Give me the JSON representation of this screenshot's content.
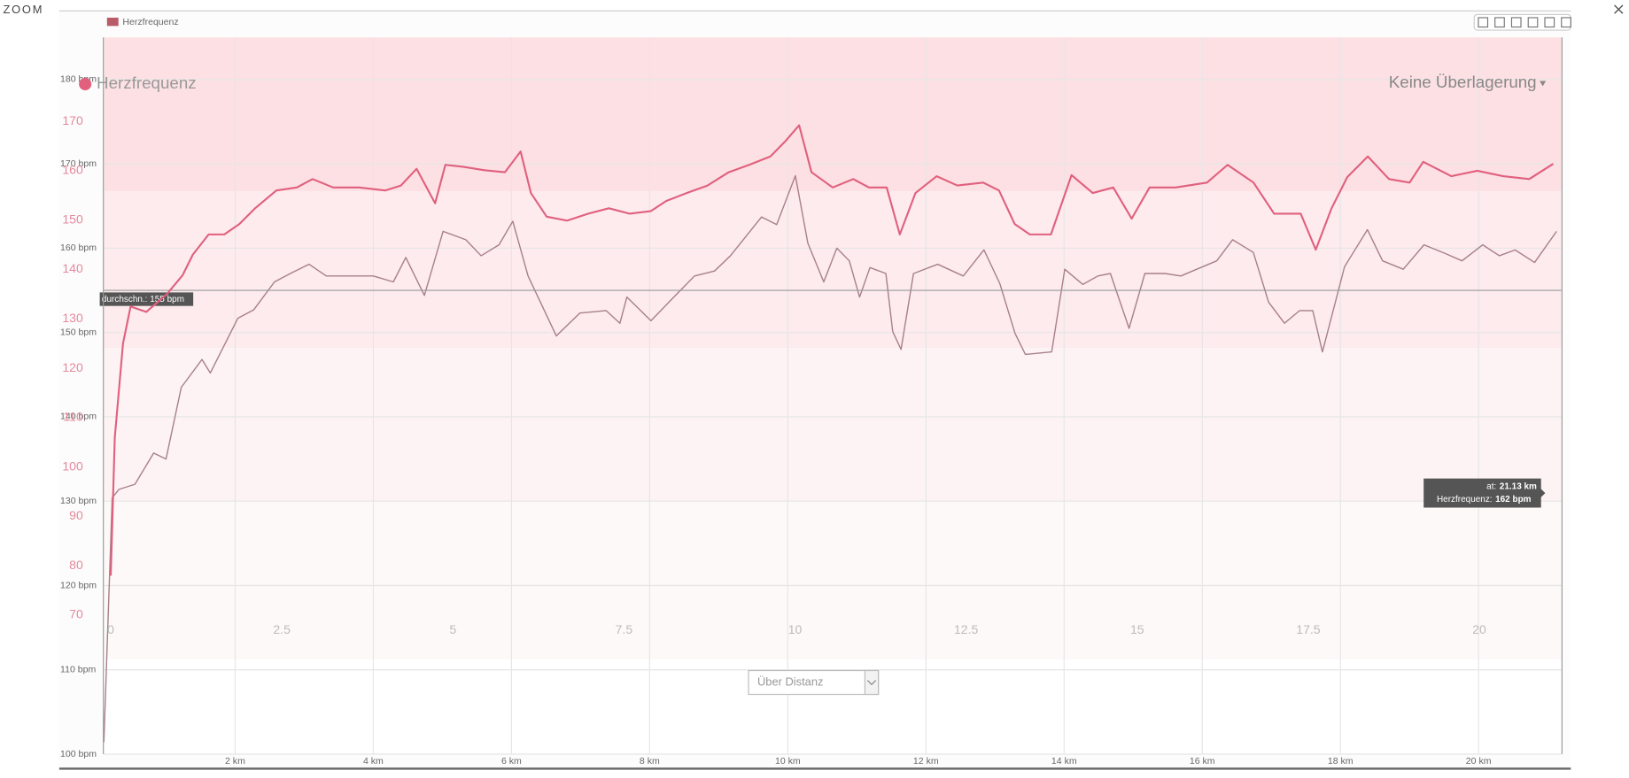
{
  "window_title": "ZOOM",
  "chart_data": [
    {
      "type": "line",
      "legend": "top-left",
      "xlim": [
        0.1,
        21.2
      ],
      "ylim": [
        100,
        185
      ],
      "xticks": [
        {
          "value": 2,
          "label": "2 km"
        },
        {
          "value": 4,
          "label": "4 km"
        },
        {
          "value": 6,
          "label": "6 km"
        },
        {
          "value": 8,
          "label": "8 km"
        },
        {
          "value": 10,
          "label": "10 km"
        },
        {
          "value": 12,
          "label": "12 km"
        },
        {
          "value": 14,
          "label": "14 km"
        },
        {
          "value": 16,
          "label": "16 km"
        },
        {
          "value": 18,
          "label": "18 km"
        },
        {
          "value": 20,
          "label": "20 km"
        }
      ],
      "yticks": [
        {
          "value": 100,
          "label": "100 bpm"
        },
        {
          "value": 110,
          "label": "110 bpm"
        },
        {
          "value": 120,
          "label": "120 bpm"
        },
        {
          "value": 130,
          "label": "130 bpm"
        },
        {
          "value": 140,
          "label": "140 bpm"
        },
        {
          "value": 150,
          "label": "150 bpm"
        },
        {
          "value": 160,
          "label": "160 bpm"
        },
        {
          "value": 170,
          "label": "170 bpm"
        },
        {
          "value": 180,
          "label": "180 bpm"
        }
      ],
      "grid": true,
      "average": {
        "value": 155,
        "label": "durchschn.: 155 bpm"
      },
      "tooltip": {
        "x": 21.13,
        "y": 162,
        "x_name": "at:",
        "x_label": "21.13 km",
        "y_name": "Herzfrequenz:",
        "y_label": "162 bpm"
      },
      "x": [
        0.1,
        0.22,
        0.32,
        0.55,
        0.82,
        1.0,
        1.22,
        1.52,
        1.64,
        2.04,
        2.27,
        2.57,
        2.8,
        3.07,
        3.32,
        3.7,
        4.0,
        4.29,
        4.47,
        4.74,
        5.01,
        5.34,
        5.56,
        5.82,
        6.02,
        6.24,
        6.65,
        6.99,
        7.37,
        7.57,
        7.67,
        8.02,
        8.35,
        8.65,
        8.94,
        9.17,
        9.62,
        9.84,
        10.11,
        10.29,
        10.52,
        10.71,
        10.89,
        11.04,
        11.19,
        11.42,
        11.52,
        11.64,
        11.82,
        12.17,
        12.54,
        12.84,
        13.07,
        13.29,
        13.44,
        13.82,
        14.01,
        14.27,
        14.49,
        14.67,
        14.94,
        15.17,
        15.46,
        15.69,
        15.92,
        16.21,
        16.44,
        16.74,
        16.96,
        17.19,
        17.41,
        17.6,
        17.74,
        18.06,
        18.39,
        18.61,
        18.91,
        19.21,
        19.51,
        19.76,
        20.06,
        20.3,
        20.53,
        20.81,
        21.13
      ],
      "series": [
        {
          "name": "Herzfrequenz",
          "color": "#a8808a",
          "values": [
            101.4,
            130.4,
            131.4,
            132,
            135.7,
            135,
            143.5,
            146.8,
            145.2,
            151.7,
            152.7,
            156,
            157,
            158.1,
            156.7,
            156.7,
            156.7,
            156,
            158.9,
            154.4,
            162,
            161,
            159.1,
            160.4,
            163.2,
            156.7,
            149.6,
            152.3,
            152.6,
            151.1,
            154.2,
            151.4,
            154.2,
            156.7,
            157.3,
            159.1,
            163.7,
            162.8,
            168.6,
            160.6,
            156,
            160,
            158.5,
            154.2,
            157.7,
            157,
            150.1,
            148,
            157,
            158.1,
            156.7,
            159.8,
            155.8,
            149.9,
            147.4,
            147.7,
            157.5,
            155.7,
            156.7,
            157,
            150.5,
            157,
            157,
            156.7,
            157.5,
            158.5,
            161,
            159.5,
            153.6,
            151.1,
            152.6,
            152.6,
            147.7,
            157.8,
            162.2,
            158.5,
            157.5,
            160.4,
            159.4,
            158.5,
            160.4,
            159.1,
            159.8,
            158.3,
            162
          ]
        }
      ]
    },
    {
      "type": "line",
      "title": "Herzfrequenz",
      "overlay_menu": "Keine Überlagerung",
      "mode_select": "Über Distanz",
      "xlim": [
        -0.1,
        21.2
      ],
      "ylim": [
        61,
        187
      ],
      "xticks": [
        0,
        2.5,
        5,
        7.5,
        10,
        12.5,
        15,
        17.5,
        20
      ],
      "yticks": [
        70,
        80,
        90,
        100,
        110,
        120,
        130,
        140,
        150,
        160,
        170
      ],
      "x": [
        0,
        0.06,
        0.18,
        0.29,
        0.52,
        0.82,
        1.05,
        1.2,
        1.43,
        1.66,
        1.88,
        2.11,
        2.42,
        2.72,
        2.95,
        3.25,
        3.63,
        4.01,
        4.24,
        4.47,
        4.74,
        4.89,
        5.15,
        5.46,
        5.76,
        5.99,
        6.14,
        6.37,
        6.67,
        6.98,
        7.28,
        7.58,
        7.89,
        8.12,
        8.42,
        8.72,
        9.03,
        9.33,
        9.64,
        9.86,
        10.06,
        10.24,
        10.55,
        10.85,
        11.08,
        11.34,
        11.53,
        11.76,
        12.07,
        12.37,
        12.75,
        12.98,
        13.21,
        13.43,
        13.74,
        14.04,
        14.35,
        14.65,
        14.92,
        15.18,
        15.56,
        16.02,
        16.32,
        16.7,
        17.0,
        17.39,
        17.61,
        17.84,
        18.07,
        18.37,
        18.68,
        18.98,
        19.18,
        19.59,
        19.97,
        20.35,
        20.73,
        21.08
      ],
      "series": [
        {
          "color": "#e0607e",
          "values": [
            78,
            106,
            125,
            132.5,
            131.4,
            135,
            138.8,
            143,
            147.1,
            147.1,
            149.2,
            152.4,
            156,
            156.6,
            158.3,
            156.6,
            156.6,
            156,
            157,
            160.4,
            153.4,
            161.2,
            160.8,
            160.1,
            159.7,
            163.9,
            155.5,
            150.7,
            149.9,
            151.3,
            152.4,
            151.3,
            151.8,
            153.9,
            155.5,
            157,
            159.7,
            161.2,
            162.9,
            166,
            169.2,
            159.7,
            156.6,
            158.3,
            156.6,
            156.6,
            147.1,
            155.5,
            158.9,
            157,
            157.6,
            156,
            149.2,
            147.1,
            147.1,
            159.1,
            155.5,
            156.6,
            150.3,
            156.6,
            156.6,
            157.6,
            161.2,
            157.6,
            151.3,
            151.3,
            144,
            152.4,
            158.7,
            162.9,
            158.3,
            157.6,
            161.8,
            158.9,
            160,
            158.9,
            158.3,
            161.4
          ]
        }
      ]
    }
  ]
}
